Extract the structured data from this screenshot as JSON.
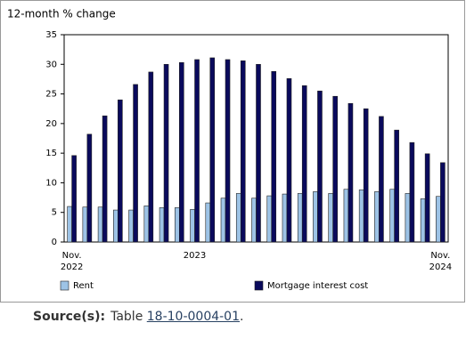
{
  "chart_data": {
    "type": "bar",
    "y_label": "12-month % change",
    "categories": [
      "Nov. 2022",
      null,
      null,
      null,
      null,
      null,
      null,
      null,
      "2023",
      null,
      null,
      null,
      null,
      null,
      null,
      null,
      null,
      null,
      null,
      null,
      null,
      null,
      null,
      null,
      "Nov. 2024"
    ],
    "series": [
      {
        "name": "Rent",
        "color": "#9dc3e6",
        "values": [
          6.0,
          5.9,
          5.9,
          5.4,
          5.4,
          6.1,
          5.8,
          5.8,
          5.5,
          6.6,
          7.4,
          8.2,
          7.4,
          7.8,
          8.1,
          8.2,
          8.5,
          8.2,
          8.9,
          8.8,
          8.5,
          8.9,
          8.2,
          7.3,
          7.7
        ]
      },
      {
        "name": "Mortgage interest cost",
        "color": "#0a0a5c",
        "values": [
          14.6,
          18.2,
          21.3,
          24.0,
          26.6,
          28.7,
          30.0,
          30.3,
          30.8,
          31.1,
          30.8,
          30.6,
          30.0,
          28.8,
          27.6,
          26.4,
          25.5,
          24.6,
          23.4,
          22.5,
          21.2,
          18.9,
          16.8,
          14.9,
          13.4
        ]
      }
    ],
    "ylim": [
      0,
      35
    ],
    "yticks": [
      0,
      5,
      10,
      15,
      20,
      25,
      30,
      35
    ],
    "grid": false
  },
  "source": {
    "label": "Source(s):",
    "text": "Table",
    "link": "18-10-0004-01",
    "end": "."
  }
}
